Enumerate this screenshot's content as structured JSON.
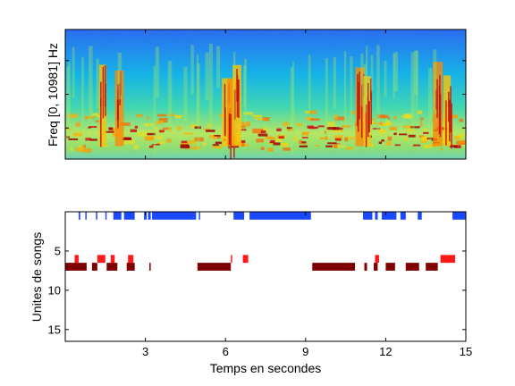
{
  "chart_data": [
    {
      "type": "heatmap",
      "ylabel": "Freq [0, 10981] Hz",
      "xlim": [
        0,
        15
      ],
      "ylim": [
        0,
        10981
      ],
      "grid": false,
      "colormap": "jet",
      "bright_vertical_bands_s": [
        1.4,
        2.0,
        6.0,
        6.2,
        6.4,
        11.0,
        11.3,
        13.9,
        14.3
      ]
    },
    {
      "type": "bar",
      "subtype": "event-raster",
      "xlabel": "Temps en secondes",
      "ylabel": "Unites de songs",
      "xlim": [
        0,
        15
      ],
      "ylim": [
        0,
        16.5
      ],
      "xticks": [
        "3",
        "6",
        "9",
        "12",
        "15"
      ],
      "yticks": [
        "5",
        "10",
        "15"
      ],
      "y_reversed": true,
      "grid": false,
      "series": [
        {
          "color": "#1a49ff",
          "row": 0.5,
          "segments": [
            [
              0.5,
              0.56
            ],
            [
              0.75,
              0.8
            ],
            [
              1.15,
              1.2
            ],
            [
              1.5,
              1.55
            ],
            [
              1.8,
              2.1
            ],
            [
              2.2,
              2.6
            ],
            [
              2.95,
              3.05
            ],
            [
              3.1,
              3.2
            ],
            [
              3.25,
              4.9
            ],
            [
              5.0,
              5.05
            ],
            [
              6.3,
              6.7
            ],
            [
              6.9,
              9.2
            ],
            [
              11.15,
              11.5
            ],
            [
              11.6,
              11.7
            ],
            [
              11.85,
              12.4
            ],
            [
              12.55,
              12.75
            ],
            [
              13.2,
              13.35
            ],
            [
              14.5,
              15.0
            ]
          ]
        },
        {
          "color": "#ff1a1a",
          "row": 6.0,
          "segments": [
            [
              0.35,
              0.5
            ],
            [
              1.2,
              1.5
            ],
            [
              1.7,
              1.85
            ],
            [
              2.35,
              2.55
            ],
            [
              6.2,
              6.25
            ],
            [
              6.65,
              6.85
            ],
            [
              11.6,
              11.75
            ],
            [
              14.05,
              14.6
            ]
          ]
        },
        {
          "color": "#800000",
          "row": 7.0,
          "segments": [
            [
              0,
              0.8
            ],
            [
              1.0,
              1.2
            ],
            [
              1.55,
              1.95
            ],
            [
              2.3,
              2.6
            ],
            [
              3.15,
              3.2
            ],
            [
              4.95,
              6.2
            ],
            [
              9.25,
              10.85
            ],
            [
              11.2,
              11.3
            ],
            [
              11.55,
              11.7
            ],
            [
              12.0,
              12.35
            ],
            [
              12.75,
              13.25
            ],
            [
              13.5,
              13.95
            ]
          ]
        }
      ]
    }
  ]
}
